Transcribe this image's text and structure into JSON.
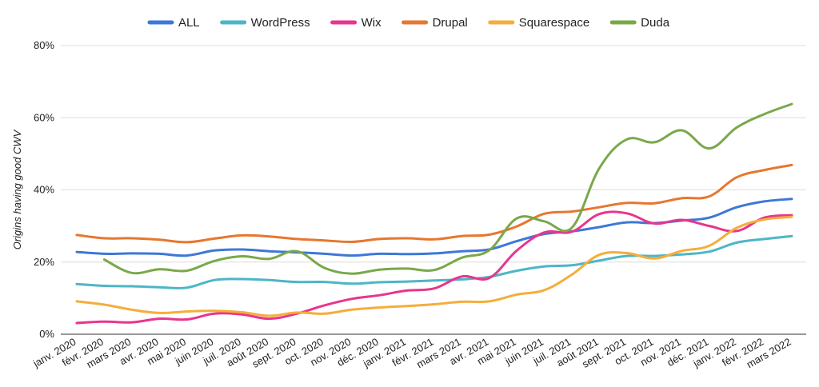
{
  "chart_data": {
    "type": "line",
    "title": "",
    "xlabel": "",
    "ylabel": "Origins having good CWV",
    "ylim": [
      0,
      80
    ],
    "yticks": [
      0,
      20,
      40,
      60,
      80
    ],
    "ytick_suffix": "%",
    "grid": true,
    "legend_position": "top",
    "categories": [
      "janv. 2020",
      "févr. 2020",
      "mars 2020",
      "avr. 2020",
      "mai 2020",
      "juin 2020",
      "juil. 2020",
      "août 2020",
      "sept. 2020",
      "oct. 2020",
      "nov. 2020",
      "déc. 2020",
      "janv. 2021",
      "févr. 2021",
      "mars 2021",
      "avr. 2021",
      "mai 2021",
      "juin 2021",
      "juil. 2021",
      "août 2021",
      "sept. 2021",
      "oct. 2021",
      "nov. 2021",
      "déc. 2021",
      "janv. 2022",
      "févr. 2022",
      "mars 2022"
    ],
    "series": [
      {
        "name": "ALL",
        "color": "#3d78d8",
        "values": [
          22.8,
          22.3,
          22.4,
          22.3,
          21.8,
          23.2,
          23.5,
          23.0,
          22.7,
          22.3,
          21.8,
          22.3,
          22.2,
          22.4,
          23.0,
          23.5,
          25.8,
          27.8,
          28.5,
          29.7,
          31.0,
          30.8,
          31.5,
          32.3,
          35.2,
          36.8,
          37.5
        ]
      },
      {
        "name": "WordPress",
        "color": "#4cb6c6",
        "values": [
          13.9,
          13.4,
          13.3,
          13.0,
          12.9,
          15.0,
          15.3,
          15.0,
          14.5,
          14.5,
          14.0,
          14.4,
          14.6,
          14.9,
          15.2,
          15.9,
          17.6,
          18.8,
          19.1,
          20.4,
          21.7,
          21.7,
          22.1,
          22.9,
          25.4,
          26.4,
          27.2
        ]
      },
      {
        "name": "Wix",
        "color": "#e8358d",
        "values": [
          3.1,
          3.5,
          3.3,
          4.3,
          4.1,
          5.7,
          5.5,
          4.3,
          5.7,
          8.0,
          9.8,
          10.8,
          12.1,
          12.7,
          16.0,
          15.6,
          23.2,
          28.2,
          28.4,
          33.3,
          33.5,
          30.7,
          31.7,
          30.0,
          28.6,
          32.3,
          33.0
        ]
      },
      {
        "name": "Drupal",
        "color": "#e6772e",
        "values": [
          27.5,
          26.6,
          26.6,
          26.2,
          25.5,
          26.5,
          27.4,
          27.1,
          26.4,
          26.0,
          25.6,
          26.4,
          26.6,
          26.3,
          27.2,
          27.6,
          29.9,
          33.4,
          34.0,
          35.2,
          36.4,
          36.3,
          37.7,
          38.2,
          43.5,
          45.5,
          46.9
        ]
      },
      {
        "name": "Squarespace",
        "color": "#f5ad3b",
        "values": [
          9.1,
          8.2,
          6.8,
          5.9,
          6.3,
          6.5,
          6.1,
          5.1,
          6.0,
          5.7,
          6.8,
          7.4,
          7.8,
          8.3,
          9.0,
          9.1,
          11.0,
          12.2,
          16.5,
          22.0,
          22.5,
          21.0,
          23.1,
          24.5,
          29.5,
          31.8,
          32.5
        ]
      },
      {
        "name": "Duda",
        "color": "#79a84a",
        "values": [
          null,
          20.7,
          17.0,
          18.0,
          17.6,
          20.3,
          21.6,
          20.9,
          23.0,
          18.4,
          16.8,
          17.9,
          18.2,
          17.8,
          21.2,
          23.3,
          32.1,
          31.3,
          29.5,
          46.0,
          54.0,
          53.2,
          56.5,
          51.5,
          57.3,
          61.0,
          63.8
        ]
      }
    ]
  }
}
